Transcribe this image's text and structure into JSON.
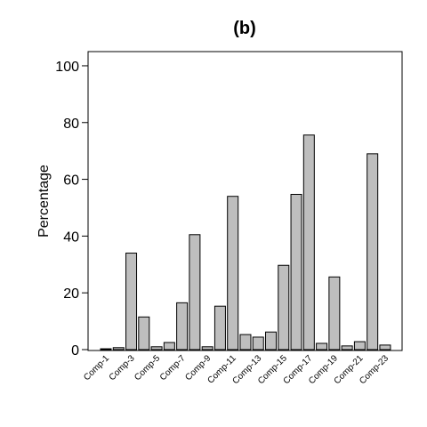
{
  "chart_data": {
    "type": "bar",
    "title": "(b)",
    "y_label": "Percentage",
    "categories": [
      "Comp-1",
      null,
      "Comp-3",
      null,
      "Comp-5",
      null,
      "Comp-7",
      null,
      "Comp-9",
      null,
      "Comp-11",
      null,
      "Comp-13",
      null,
      "Comp-15",
      null,
      "Comp-17",
      null,
      "Comp-19",
      null,
      "Comp-21",
      null,
      "Comp-23"
    ],
    "values": [
      0.3,
      0.7,
      34,
      11.5,
      1,
      2.5,
      16.5,
      40.5,
      1,
      15.3,
      54,
      5.3,
      4.4,
      6.2,
      29.7,
      54.7,
      75.6,
      2.2,
      25.6,
      1.3,
      2.8,
      69,
      1.6
    ],
    "color": "#bebebe",
    "ylim": [
      0,
      105
    ],
    "yticks": [
      0,
      20,
      40,
      60,
      80,
      100
    ]
  }
}
